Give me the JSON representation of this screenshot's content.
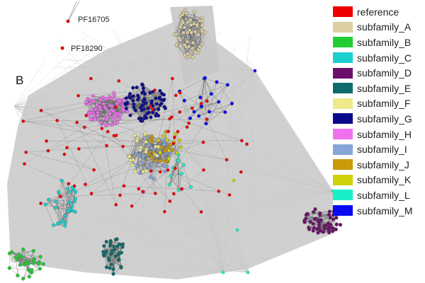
{
  "panel": {
    "label": "B"
  },
  "nodes_labeled": [
    {
      "id": "pf16705",
      "label": "PF16705"
    },
    {
      "id": "pf18290",
      "label": "PF18290"
    }
  ],
  "legend": [
    {
      "label": "reference",
      "color": "#ee0000"
    },
    {
      "label": "subfamily_A",
      "color": "#dccfa0"
    },
    {
      "label": "subfamily_B",
      "color": "#22cc33"
    },
    {
      "label": "subfamily_C",
      "color": "#1ccfcf"
    },
    {
      "label": "subfamily_D",
      "color": "#6a0f6a"
    },
    {
      "label": "subfamily_E",
      "color": "#0e6b6b"
    },
    {
      "label": "subfamily_F",
      "color": "#eeea8a"
    },
    {
      "label": "subfamily_G",
      "color": "#0a0a8a"
    },
    {
      "label": "subfamily_H",
      "color": "#f070f0"
    },
    {
      "label": "subfamily_I",
      "color": "#85a6d6"
    },
    {
      "label": "subfamily_J",
      "color": "#c99a0a"
    },
    {
      "label": "subfamily_K",
      "color": "#cfd20a"
    },
    {
      "label": "subfamily_L",
      "color": "#1af0c8"
    },
    {
      "label": "subfamily_M",
      "color": "#0a0af0"
    }
  ],
  "colors": {
    "edge_light": "#c8c8c8",
    "edge_dark": "#5a5a5a",
    "node_stroke": "#555555"
  }
}
